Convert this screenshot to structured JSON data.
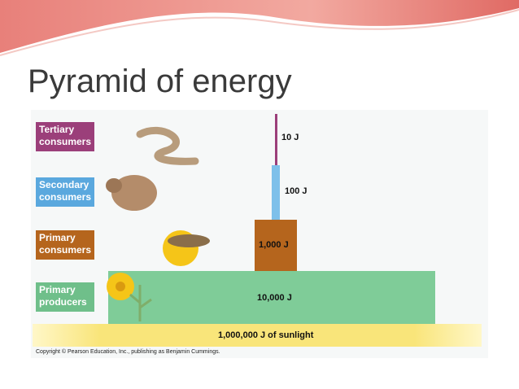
{
  "title": "Pyramid of energy",
  "levels": [
    {
      "label": "Tertiary consumers",
      "energy": "10 J"
    },
    {
      "label": "Secondary consumers",
      "energy": "100 J"
    },
    {
      "label": "Primary consumers",
      "energy": "1,000 J"
    },
    {
      "label": "Primary producers",
      "energy": "10,000 J"
    }
  ],
  "sunlight": "1,000,000 J of sunlight",
  "copyright": "Copyright © Pearson Education, Inc., publishing as Benjamin Cummings."
}
